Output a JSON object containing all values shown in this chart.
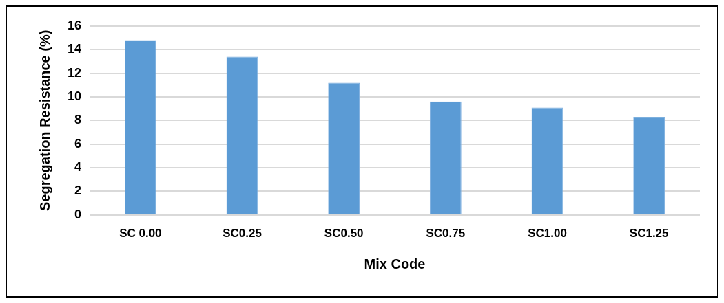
{
  "chart_data": {
    "type": "bar",
    "xlabel": "Mix Code",
    "ylabel": "Segregation Resistance (%)",
    "categories": [
      "SC 0.00",
      "SC0.25",
      "SC0.50",
      "SC0.75",
      "SC1.00",
      "SC1.25"
    ],
    "values": [
      14.8,
      13.4,
      11.2,
      9.6,
      9.1,
      8.3
    ],
    "color": "#5b9bd5",
    "ylim": [
      0,
      16
    ],
    "yticks": [
      0,
      2,
      4,
      6,
      8,
      10,
      12,
      14,
      16
    ],
    "grid": "y"
  }
}
